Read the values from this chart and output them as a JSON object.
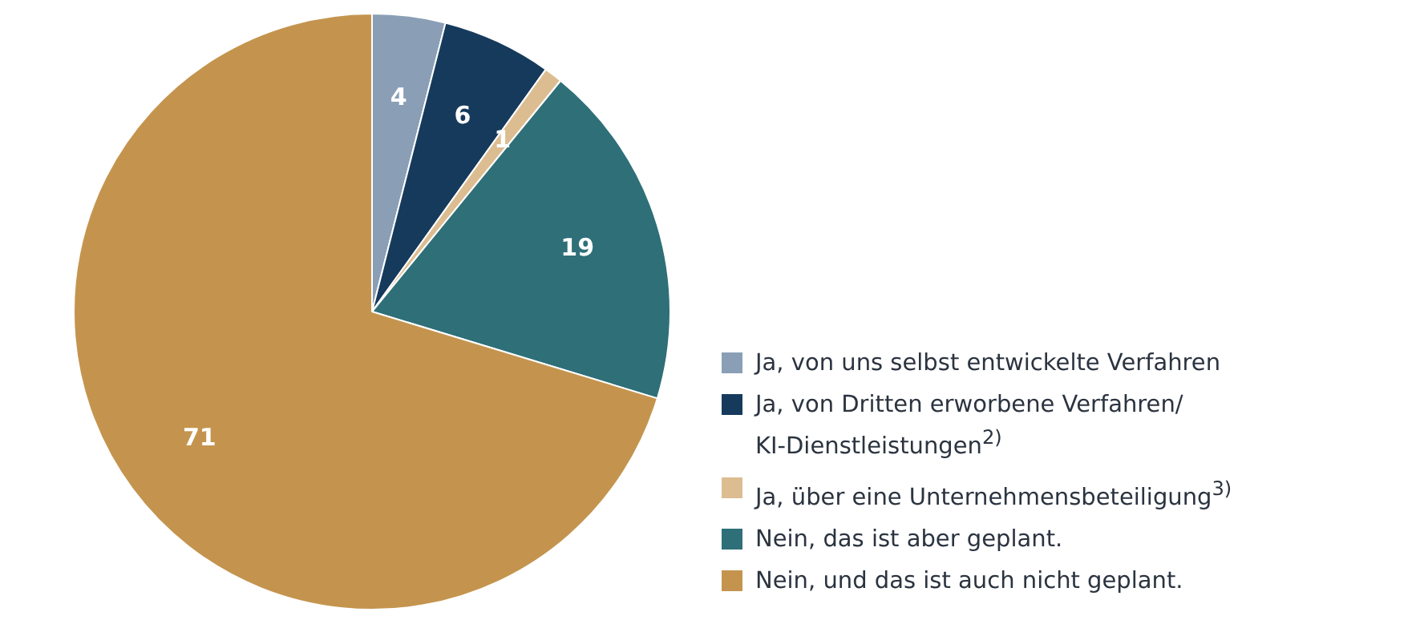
{
  "chart_data": {
    "type": "pie",
    "categories": [
      "Ja, von uns selbst entwickelte Verfahren",
      "Ja, von Dritten erworbene Verfahren/ KI-Dienstleistungen$^{2)}$",
      "Ja, über eine Unternehmensbeteiligung$^{3)}$",
      "Nein, das ist aber geplant.",
      "Nein, und das ist auch nicht geplant."
    ],
    "values": [
      4,
      6,
      1,
      19,
      71
    ],
    "colors": [
      "#8a9fb6",
      "#163a5c",
      "#dcbd91",
      "#2e6f78",
      "#c4944e"
    ],
    "data_labels": true,
    "legend": "bottom right"
  }
}
